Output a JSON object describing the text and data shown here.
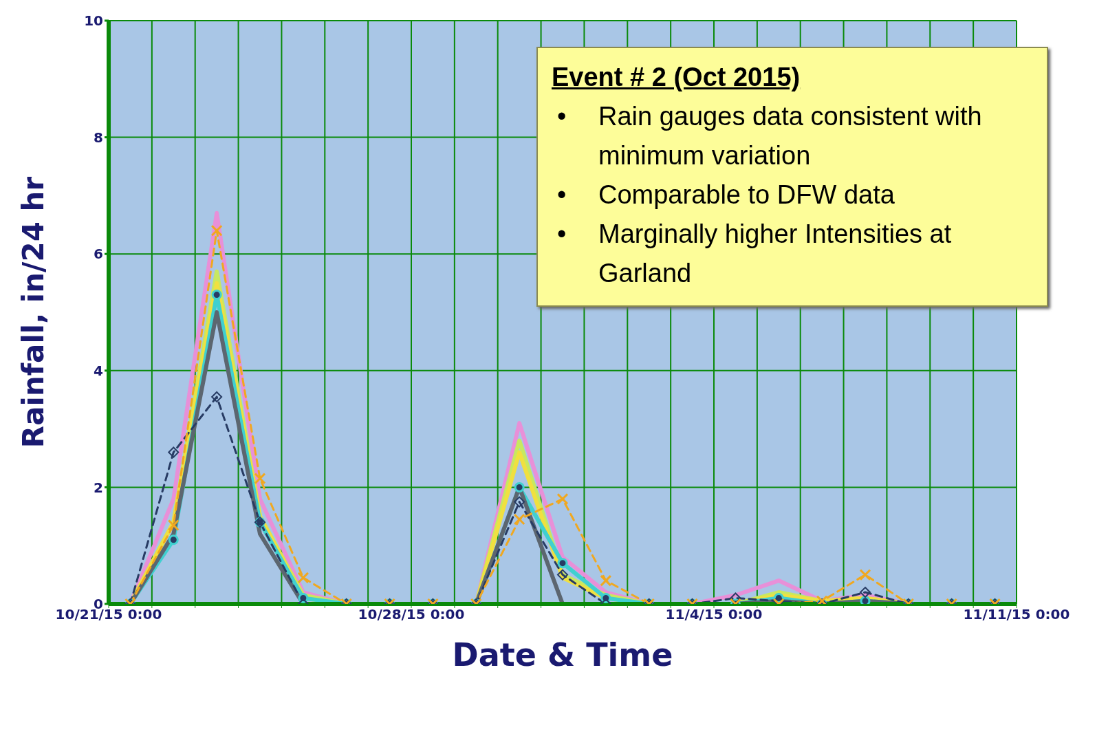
{
  "chart_data": {
    "type": "line",
    "xlabel": "Date & Time",
    "ylabel": "Rainfall, in/24 hr",
    "annotations": [
      "Event # 2 (Oct 2015)",
      "•",
      "Rain gauges data consistent with minimum variation",
      "•",
      "Comparable to DFW data",
      "•",
      "Marginally higher Intensities at Garland"
    ],
    "x": [
      "2015-10-21T12:00",
      "2015-10-22T12:00",
      "2015-10-23T12:00",
      "2015-10-24T12:00",
      "2015-10-25T12:00",
      "2015-10-26T12:00",
      "2015-10-27T12:00",
      "2015-10-28T12:00",
      "2015-10-29T12:00",
      "2015-10-30T12:00",
      "2015-10-31T12:00",
      "2015-11-01T12:00",
      "2015-11-02T12:00",
      "2015-11-03T12:00",
      "2015-11-04T12:00",
      "2015-11-05T12:00",
      "2015-11-06T12:00",
      "2015-11-07T12:00",
      "2015-11-08T12:00",
      "2015-11-09T12:00",
      "2015-11-10T12:00"
    ],
    "series": [
      {
        "color": "#e890d8",
        "line_style": "solid",
        "marker": "none",
        "values": [
          0,
          1.8,
          6.7,
          1.8,
          0.2,
          0,
          0,
          0,
          0,
          3.1,
          0.8,
          0.2,
          0,
          0,
          0.15,
          0.4,
          0.05,
          0.15,
          0,
          0,
          0
        ]
      },
      {
        "color": "#c8e860",
        "line_style": "solid",
        "marker": "none",
        "values": [
          0,
          1.4,
          5.7,
          1.5,
          0.15,
          0,
          0,
          0,
          0,
          2.8,
          0.5,
          0.15,
          0,
          0,
          0,
          0.2,
          0.05,
          0.1,
          0,
          0,
          0
        ]
      },
      {
        "color": "#f0e040",
        "line_style": "solid",
        "marker": "none",
        "values": [
          0,
          1.4,
          5.5,
          1.5,
          0.1,
          0,
          0,
          0,
          0,
          2.6,
          0.45,
          0.1,
          0,
          0,
          0,
          0.15,
          0.05,
          0.1,
          0,
          0,
          0
        ]
      },
      {
        "color": "#40d0d0",
        "line_style": "solid",
        "marker": "circle",
        "values": [
          0,
          1.1,
          5.3,
          1.4,
          0.1,
          0,
          0,
          0,
          0,
          2.0,
          0.7,
          0.1,
          0,
          0,
          0,
          0.1,
          0,
          0.05,
          0,
          0,
          0
        ]
      },
      {
        "color": "#5c6670",
        "line_style": "solid",
        "marker": "none",
        "values": [
          0,
          1.2,
          5.0,
          1.2,
          0,
          0,
          0,
          0,
          0,
          2.0,
          0,
          0,
          0,
          0,
          0,
          0.05,
          0,
          0.05,
          0,
          0,
          0
        ]
      },
      {
        "color": "#283c64",
        "line_style": "dashed",
        "marker": "diamond",
        "values": [
          0,
          2.6,
          3.55,
          1.4,
          0,
          0,
          0,
          0,
          0,
          1.75,
          0.5,
          0,
          0,
          0,
          0.1,
          0.05,
          0,
          0.2,
          0,
          0,
          0
        ]
      },
      {
        "color": "#f0a820",
        "line_style": "dashed",
        "marker": "cross",
        "values": [
          0,
          1.35,
          6.4,
          2.15,
          0.45,
          0,
          0,
          0,
          0,
          1.45,
          1.8,
          0.4,
          0,
          0,
          0,
          0,
          0.05,
          0.5,
          0,
          0,
          0
        ]
      }
    ],
    "xlim": [
      "2015-10-21",
      "2015-11-11"
    ],
    "xticks": [
      {
        "value": "2015-10-21",
        "label": "10/21/15 0:00"
      },
      {
        "value": "2015-10-22",
        "label": null
      },
      {
        "value": "2015-10-23",
        "label": null
      },
      {
        "value": "2015-10-24",
        "label": null
      },
      {
        "value": "2015-10-25",
        "label": null
      },
      {
        "value": "2015-10-26",
        "label": null
      },
      {
        "value": "2015-10-27",
        "label": null
      },
      {
        "value": "2015-10-28",
        "label": "10/28/15 0:00"
      },
      {
        "value": "2015-10-29",
        "label": null
      },
      {
        "value": "2015-10-30",
        "label": null
      },
      {
        "value": "2015-10-31",
        "label": null
      },
      {
        "value": "2015-11-01",
        "label": null
      },
      {
        "value": "2015-11-02",
        "label": null
      },
      {
        "value": "2015-11-03",
        "label": null
      },
      {
        "value": "2015-11-04",
        "label": "11/4/15 0:00"
      },
      {
        "value": "2015-11-05",
        "label": null
      },
      {
        "value": "2015-11-06",
        "label": null
      },
      {
        "value": "2015-11-07",
        "label": null
      },
      {
        "value": "2015-11-08",
        "label": null
      },
      {
        "value": "2015-11-09",
        "label": null
      },
      {
        "value": "2015-11-10",
        "label": null
      },
      {
        "value": "2015-11-11",
        "label": "11/11/15 0:00"
      }
    ],
    "ylim": [
      0,
      10
    ],
    "yticks": [
      0,
      2,
      4,
      6,
      8,
      10
    ],
    "grid": true
  }
}
